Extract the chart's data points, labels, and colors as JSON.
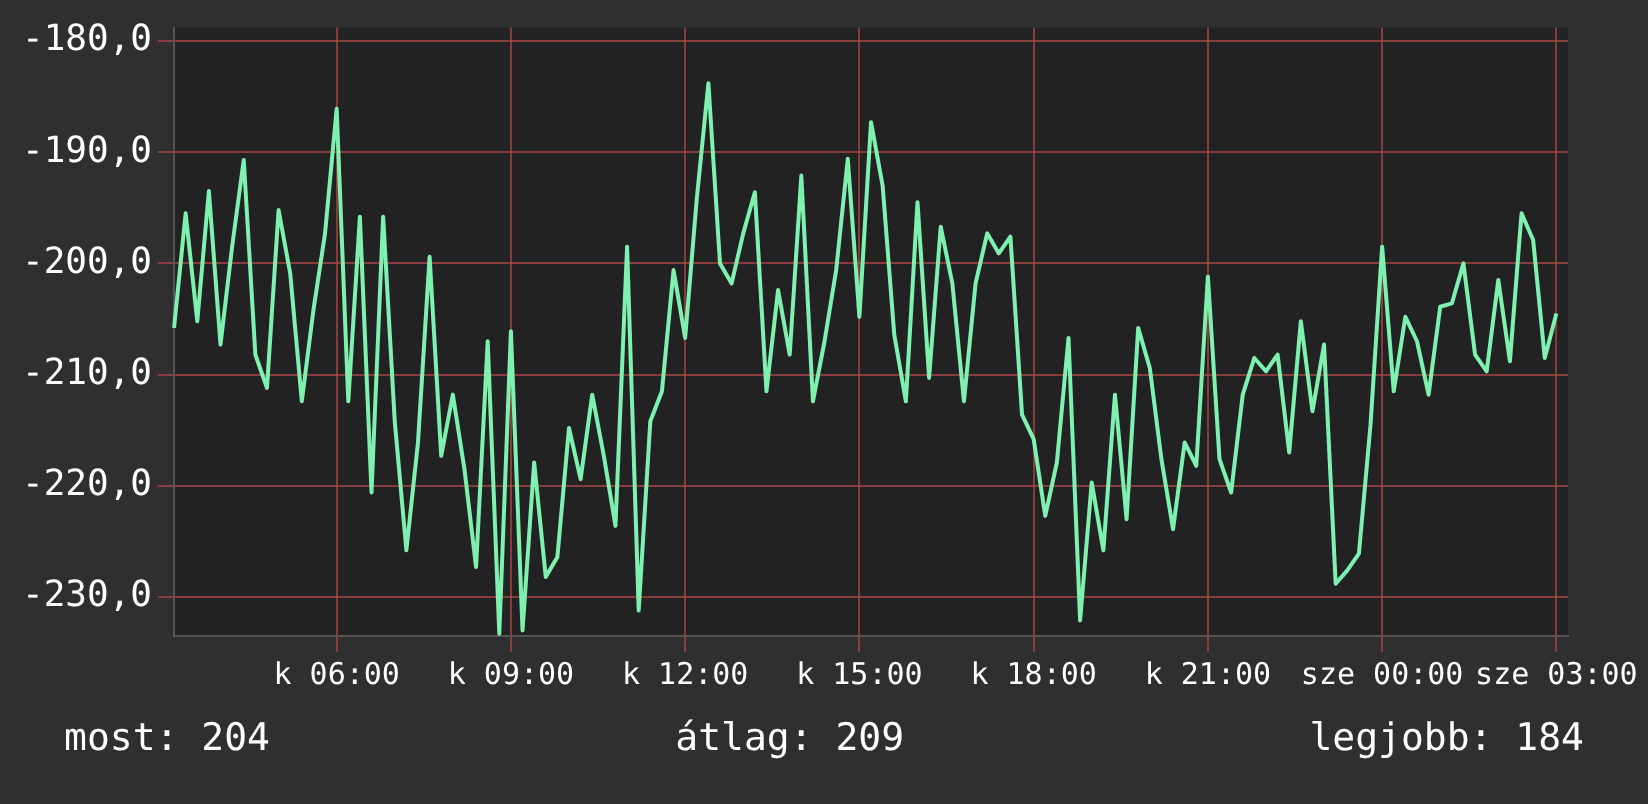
{
  "chart_data": {
    "type": "line",
    "ylim": [
      -233.5,
      -178.8
    ],
    "categories": [
      null,
      null,
      null,
      null,
      null,
      null,
      null,
      null,
      null,
      null,
      null,
      null,
      null,
      null,
      "k 06:00",
      null,
      null,
      null,
      null,
      null,
      null,
      null,
      null,
      null,
      null,
      null,
      null,
      null,
      null,
      "k 09:00",
      null,
      null,
      null,
      null,
      null,
      null,
      null,
      null,
      null,
      null,
      null,
      null,
      null,
      null,
      "k 12:00",
      null,
      null,
      null,
      null,
      null,
      null,
      null,
      null,
      null,
      null,
      null,
      null,
      null,
      null,
      "k 15:00",
      null,
      null,
      null,
      null,
      null,
      null,
      null,
      null,
      null,
      null,
      null,
      null,
      null,
      null,
      "k 18:00",
      null,
      null,
      null,
      null,
      null,
      null,
      null,
      null,
      null,
      null,
      null,
      null,
      null,
      null,
      "k 21:00",
      null,
      null,
      null,
      null,
      null,
      null,
      null,
      null,
      null,
      null,
      null,
      null,
      null,
      null,
      "sze 00:00",
      null,
      null,
      null,
      null,
      null,
      null,
      null,
      null,
      null,
      null,
      null,
      null,
      null,
      null,
      "sze 03:00",
      null
    ],
    "yticks": [
      {
        "value": -180,
        "label": "-180,0"
      },
      {
        "value": -190,
        "label": "-190,0"
      },
      {
        "value": -200,
        "label": "-200,0"
      },
      {
        "value": -210,
        "label": "-210,0"
      },
      {
        "value": -220,
        "label": "-220,0"
      },
      {
        "value": -230,
        "label": "-230,0"
      }
    ],
    "grid": true,
    "legend": false,
    "marker": "none",
    "line_style": "solid",
    "annotations": [
      "most: 204",
      "átlag: 209",
      "legjobb: 184"
    ],
    "series": [
      {
        "color": "#7ef0b0",
        "values": [
          -205.8,
          -195.5,
          -205.2,
          -193.5,
          -207.3,
          -198.5,
          -190.7,
          -208.2,
          -211.2,
          -195.2,
          -200.9,
          -212.4,
          -204.2,
          -197.3,
          -186.1,
          -212.4,
          -195.8,
          -220.6,
          -195.8,
          -214.2,
          -225.8,
          -216.1,
          -199.4,
          -217.3,
          -211.8,
          -218.5,
          -227.3,
          -207.0,
          -233.3,
          -206.1,
          -233.0,
          -217.9,
          -228.2,
          -226.4,
          -214.8,
          -219.4,
          -211.8,
          -217.3,
          -223.6,
          -198.5,
          -231.2,
          -214.2,
          -211.5,
          -200.6,
          -206.7,
          -194.2,
          -183.8,
          -200.0,
          -201.8,
          -197.3,
          -193.6,
          -211.5,
          -202.4,
          -208.2,
          -192.1,
          -212.4,
          -207.0,
          -200.6,
          -190.6,
          -204.8,
          -187.3,
          -193.0,
          -206.4,
          -212.4,
          -194.5,
          -210.3,
          -196.7,
          -201.8,
          -212.4,
          -201.8,
          -197.3,
          -199.1,
          -197.6,
          -213.6,
          -215.8,
          -222.7,
          -217.9,
          -206.7,
          -232.1,
          -219.7,
          -225.8,
          -211.8,
          -223.0,
          -205.8,
          -209.4,
          -217.6,
          -223.9,
          -216.1,
          -218.2,
          -201.2,
          -217.6,
          -220.6,
          -211.8,
          -208.5,
          -209.7,
          -208.2,
          -217.0,
          -205.2,
          -213.3,
          -207.3,
          -228.8,
          -227.6,
          -226.1,
          -214.5,
          -198.5,
          -211.5,
          -204.8,
          -207.0,
          -211.8,
          -203.9,
          -203.6,
          -200.0,
          -208.2,
          -209.7,
          -201.5,
          -208.8,
          -195.5,
          -197.9,
          -208.5,
          -204.5,
          null
        ]
      }
    ]
  }
}
